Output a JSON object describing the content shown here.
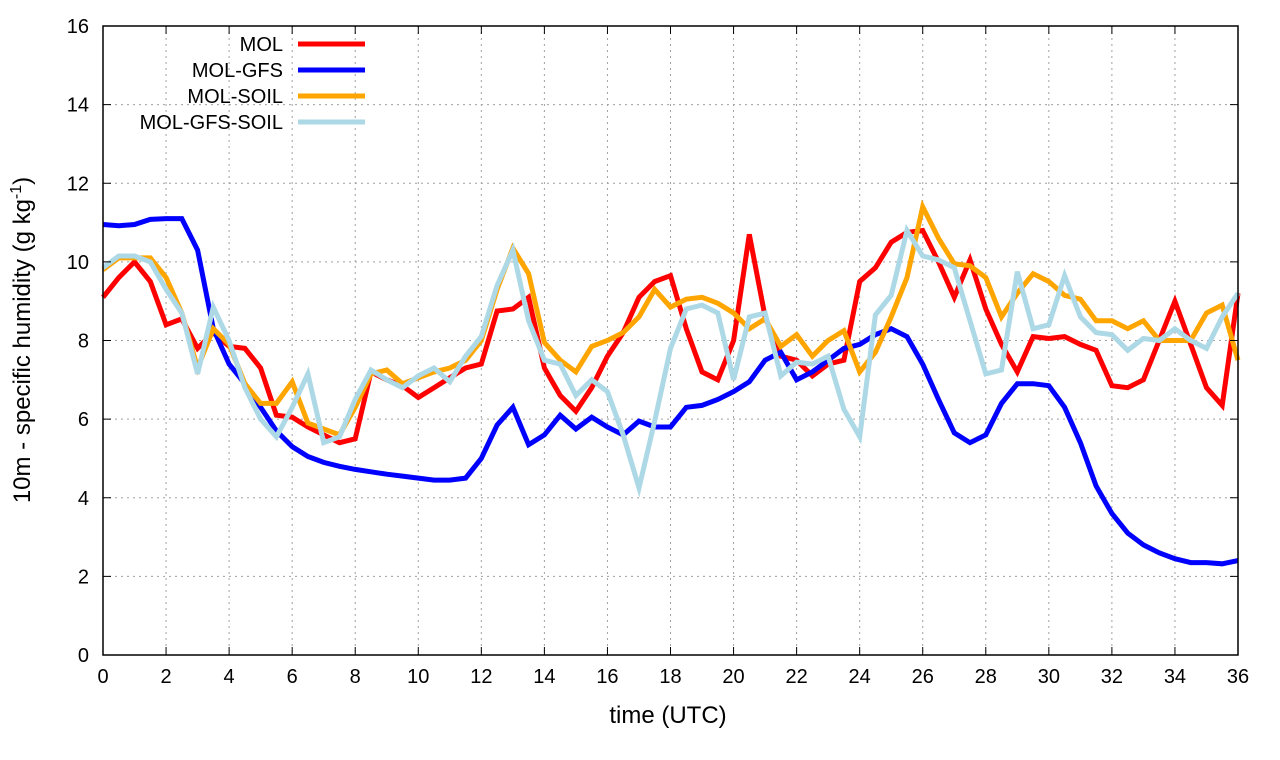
{
  "chart_data": {
    "type": "line",
    "title": "",
    "xlabel": "time (UTC)",
    "ylabel": {
      "main": "10m - specific humidity (g kg",
      "sup": "-1",
      "end": ")"
    },
    "xlim": [
      0,
      36
    ],
    "ylim": [
      0,
      16
    ],
    "xticks": [
      0,
      2,
      4,
      6,
      8,
      10,
      12,
      14,
      16,
      18,
      20,
      22,
      24,
      26,
      28,
      30,
      32,
      34,
      36
    ],
    "yticks": [
      0,
      2,
      4,
      6,
      8,
      10,
      12,
      14,
      16
    ],
    "grid": true,
    "legend_position": "top-left",
    "x_step": 0.5,
    "series": [
      {
        "name": "MOL",
        "color": "#ff0000",
        "values": [
          9.1,
          9.6,
          10.0,
          9.5,
          8.4,
          8.55,
          7.8,
          8.2,
          7.85,
          7.8,
          7.3,
          6.1,
          6.05,
          5.8,
          5.6,
          5.4,
          5.5,
          7.2,
          7.0,
          6.85,
          6.55,
          6.8,
          7.05,
          7.3,
          7.4,
          8.75,
          8.8,
          9.1,
          7.3,
          6.6,
          6.2,
          6.8,
          7.6,
          8.2,
          9.1,
          9.5,
          9.65,
          8.3,
          7.2,
          7.0,
          8.0,
          10.7,
          8.6,
          7.6,
          7.5,
          7.1,
          7.4,
          7.5,
          9.5,
          9.85,
          10.5,
          10.75,
          10.8,
          10.0,
          9.1,
          10.05,
          8.8,
          7.9,
          7.2,
          8.1,
          8.05,
          8.1,
          7.9,
          7.75,
          6.85,
          6.8,
          7.0,
          8.0,
          9.0,
          7.9,
          6.8,
          6.35,
          9.2
        ]
      },
      {
        "name": "MOL-GFS",
        "color": "#0000ff",
        "values": [
          10.95,
          10.92,
          10.95,
          11.08,
          11.1,
          11.1,
          10.3,
          8.3,
          7.4,
          6.9,
          6.3,
          5.7,
          5.3,
          5.05,
          4.9,
          4.8,
          4.72,
          4.66,
          4.6,
          4.55,
          4.5,
          4.45,
          4.45,
          4.5,
          5.0,
          5.85,
          6.3,
          5.35,
          5.6,
          6.1,
          5.75,
          6.05,
          5.8,
          5.6,
          5.95,
          5.8,
          5.8,
          6.3,
          6.35,
          6.5,
          6.7,
          6.95,
          7.5,
          7.7,
          7.0,
          7.2,
          7.5,
          7.8,
          7.9,
          8.15,
          8.3,
          8.1,
          7.4,
          6.5,
          5.65,
          5.4,
          5.6,
          6.4,
          6.9,
          6.9,
          6.85,
          6.3,
          5.4,
          4.3,
          3.6,
          3.1,
          2.8,
          2.6,
          2.45,
          2.35,
          2.35,
          2.32,
          2.4
        ]
      },
      {
        "name": "MOL-SOIL",
        "color": "#ffa500",
        "values": [
          9.8,
          10.1,
          10.1,
          10.1,
          9.6,
          8.7,
          7.3,
          8.3,
          7.9,
          6.9,
          6.4,
          6.4,
          6.95,
          5.9,
          5.75,
          5.6,
          6.3,
          7.15,
          7.25,
          6.9,
          7.05,
          7.2,
          7.3,
          7.5,
          8.0,
          9.3,
          10.35,
          9.7,
          7.95,
          7.5,
          7.2,
          7.85,
          8.0,
          8.2,
          8.6,
          9.3,
          8.85,
          9.05,
          9.1,
          8.95,
          8.7,
          8.3,
          8.55,
          7.85,
          8.15,
          7.6,
          8.0,
          8.25,
          7.2,
          7.7,
          8.6,
          9.6,
          11.4,
          10.6,
          9.95,
          9.9,
          9.6,
          8.6,
          9.2,
          9.7,
          9.5,
          9.15,
          9.05,
          8.5,
          8.5,
          8.3,
          8.5,
          8.0,
          8.0,
          8.0,
          8.7,
          8.9,
          7.5
        ]
      },
      {
        "name": "MOL-GFS-SOIL",
        "color": "#add8e6",
        "values": [
          9.85,
          10.15,
          10.15,
          10.0,
          9.3,
          8.7,
          7.15,
          8.85,
          8.0,
          6.8,
          6.0,
          5.55,
          6.3,
          7.15,
          5.4,
          5.55,
          6.5,
          7.25,
          7.0,
          6.8,
          7.1,
          7.3,
          6.95,
          7.6,
          8.1,
          9.4,
          10.3,
          8.5,
          7.5,
          7.4,
          6.6,
          7.0,
          6.7,
          5.6,
          4.25,
          5.95,
          7.8,
          8.8,
          8.9,
          8.7,
          7.0,
          8.6,
          8.7,
          7.1,
          7.45,
          7.4,
          7.6,
          6.25,
          5.55,
          8.65,
          9.15,
          10.8,
          10.15,
          10.05,
          9.85,
          8.5,
          7.15,
          7.25,
          9.75,
          8.3,
          8.4,
          9.65,
          8.6,
          8.2,
          8.15,
          7.75,
          8.05,
          8.0,
          8.3,
          8.0,
          7.8,
          8.6,
          9.2
        ]
      }
    ]
  }
}
